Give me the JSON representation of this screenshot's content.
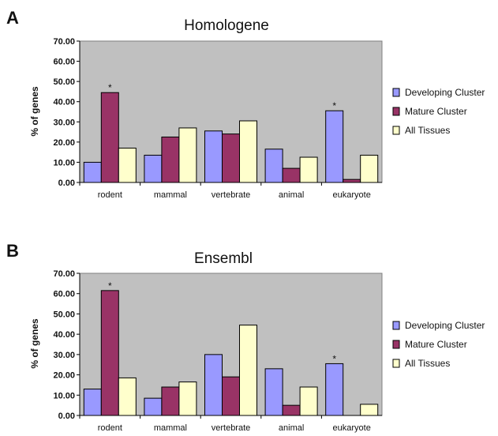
{
  "chart_data": [
    {
      "panel": "A",
      "type": "bar",
      "title": "Homologene",
      "ylabel": "% of genes",
      "xlabel": "",
      "ylim": [
        0,
        70
      ],
      "yticks": [
        "0.00",
        "10.00",
        "20.00",
        "30.00",
        "40.00",
        "50.00",
        "60.00",
        "70.00"
      ],
      "categories": [
        "rodent",
        "mammal",
        "vertebrate",
        "animal",
        "eukaryote"
      ],
      "series": [
        {
          "name": "Developing Cluster",
          "color": "#9999ff",
          "values": [
            10,
            13.5,
            25.5,
            16.5,
            35.5
          ]
        },
        {
          "name": "Mature Cluster",
          "color": "#993366",
          "values": [
            44.5,
            22.5,
            24,
            7,
            1.5
          ]
        },
        {
          "name": "All Tissues",
          "color": "#ffffcc",
          "values": [
            17,
            27,
            30.5,
            12.5,
            13.5
          ]
        }
      ],
      "annotations": [
        {
          "category": "rodent",
          "series": "Mature Cluster",
          "text": "*"
        },
        {
          "category": "eukaryote",
          "series": "Developing Cluster",
          "text": "*"
        }
      ],
      "grid": false,
      "legend": "right",
      "plot_background": "#c0c0c0"
    },
    {
      "panel": "B",
      "type": "bar",
      "title": "Ensembl",
      "ylabel": "% of genes",
      "xlabel": "",
      "ylim": [
        0,
        70
      ],
      "yticks": [
        "0.00",
        "10.00",
        "20.00",
        "30.00",
        "40.00",
        "50.00",
        "60.00",
        "70.00"
      ],
      "categories": [
        "rodent",
        "mammal",
        "vertebrate",
        "animal",
        "eukaryote"
      ],
      "series": [
        {
          "name": "Developing Cluster",
          "color": "#9999ff",
          "values": [
            13,
            8.5,
            30,
            23,
            25.5
          ]
        },
        {
          "name": "Mature Cluster",
          "color": "#993366",
          "values": [
            61.5,
            14,
            19,
            5,
            0
          ]
        },
        {
          "name": "All Tissues",
          "color": "#ffffcc",
          "values": [
            18.5,
            16.5,
            44.5,
            14,
            5.5
          ]
        }
      ],
      "annotations": [
        {
          "category": "rodent",
          "series": "Mature Cluster",
          "text": "*"
        },
        {
          "category": "eukaryote",
          "series": "Developing Cluster",
          "text": "*"
        }
      ],
      "grid": false,
      "legend": "right",
      "plot_background": "#c0c0c0"
    }
  ]
}
